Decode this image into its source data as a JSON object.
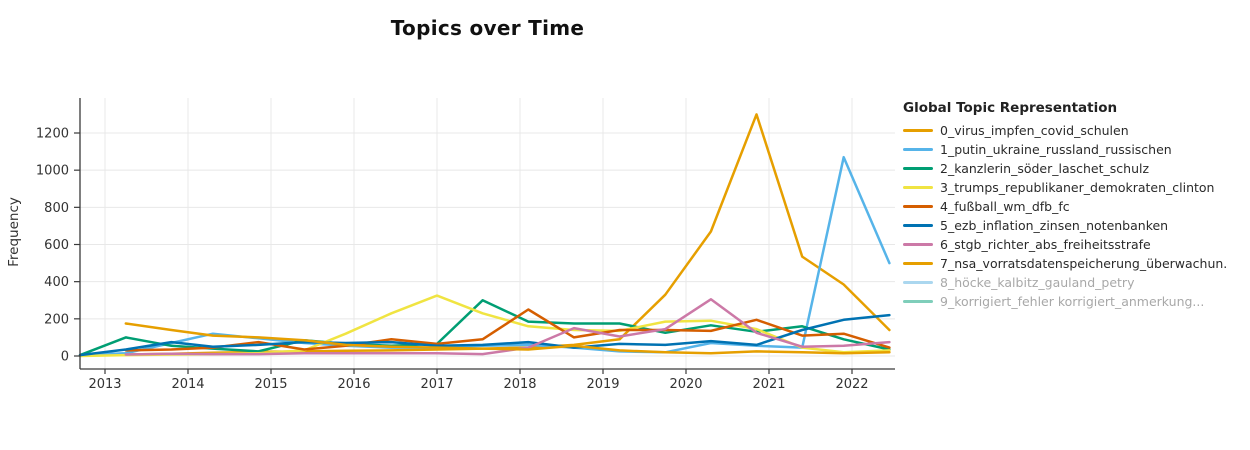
{
  "title": "Topics over Time",
  "legend": {
    "title": "Global Topic Representation"
  },
  "chart_data": {
    "type": "line",
    "title": "Topics over Time",
    "xlabel": "",
    "ylabel": "Frequency",
    "grid": true,
    "legend_position": "right",
    "x_ticks": [
      2013,
      2014,
      2015,
      2016,
      2017,
      2018,
      2019,
      2020,
      2021,
      2022
    ],
    "y_ticks": [
      0,
      200,
      400,
      600,
      800,
      1000,
      1200
    ],
    "xlim": [
      2012.7,
      2022.52
    ],
    "ylim": [
      -70,
      1390
    ],
    "x": [
      2012.7,
      2013.25,
      2013.8,
      2014.3,
      2014.85,
      2015.4,
      2015.9,
      2016.45,
      2017.0,
      2017.55,
      2018.1,
      2018.65,
      2019.2,
      2019.75,
      2020.3,
      2020.85,
      2021.4,
      2021.9,
      2022.45
    ],
    "series": [
      {
        "name": "0_virus_impfen_covid_schulen",
        "color": "#E69F00",
        "hidden": false,
        "values": [
          5,
          8,
          12,
          18,
          22,
          25,
          28,
          30,
          35,
          40,
          45,
          60,
          90,
          330,
          670,
          1300,
          535,
          385,
          140
        ]
      },
      {
        "name": "1_putin_ukraine_russland_russischen",
        "color": "#56B4E9",
        "hidden": false,
        "values": [
          5,
          15,
          70,
          120,
          95,
          70,
          55,
          45,
          45,
          55,
          60,
          45,
          25,
          20,
          70,
          55,
          45,
          1070,
          500
        ]
      },
      {
        "name": "2_kanzlerin_söder_laschet_schulz",
        "color": "#009E73",
        "hidden": false,
        "values": [
          5,
          100,
          55,
          40,
          25,
          85,
          65,
          55,
          65,
          300,
          185,
          175,
          175,
          125,
          165,
          130,
          160,
          90,
          35
        ]
      },
      {
        "name": "3_trumps_republikaner_demokraten_clinton",
        "color": "#F0E442",
        "hidden": false,
        "values": [
          0,
          5,
          8,
          10,
          15,
          30,
          120,
          230,
          325,
          230,
          160,
          140,
          135,
          185,
          190,
          145,
          45,
          20,
          30
        ]
      },
      {
        "name": "4_fußball_wm_dfb_fc",
        "color": "#D55E00",
        "hidden": false,
        "values": [
          null,
          30,
          35,
          45,
          75,
          35,
          55,
          90,
          65,
          90,
          250,
          100,
          140,
          140,
          135,
          195,
          110,
          120,
          45
        ]
      },
      {
        "name": "5_ezb_inflation_zinsen_notenbanken",
        "color": "#0072B2",
        "hidden": false,
        "values": [
          5,
          35,
          75,
          50,
          60,
          75,
          70,
          75,
          55,
          60,
          75,
          45,
          65,
          60,
          80,
          60,
          140,
          195,
          220
        ]
      },
      {
        "name": "6_stgb_richter_abs_freiheitsstrafe",
        "color": "#CC79A7",
        "hidden": false,
        "values": [
          null,
          8,
          12,
          10,
          10,
          15,
          15,
          15,
          15,
          10,
          45,
          150,
          105,
          145,
          305,
          125,
          50,
          55,
          75
        ]
      },
      {
        "name": "7_nsa_vorratsdatenspeicherung_überwachun.",
        "color": "#E69F00",
        "hidden": false,
        "values": [
          null,
          175,
          140,
          110,
          100,
          85,
          60,
          50,
          45,
          40,
          35,
          55,
          30,
          20,
          15,
          25,
          20,
          15,
          20
        ]
      },
      {
        "name": "8_höcke_kalbitz_gauland_petry",
        "color": "#56B4E9",
        "legend_color": "#abd7ef",
        "hidden": true,
        "values": null
      },
      {
        "name": "9_korrigiert_fehler korrigiert_anmerkung...",
        "color": "#009E73",
        "legend_color": "#7fceba",
        "hidden": true,
        "values": null
      }
    ]
  },
  "style": {
    "grid_color": "#e8e8e8",
    "axis_color": "#3a3a3a",
    "tick_label_color": "#333333"
  }
}
